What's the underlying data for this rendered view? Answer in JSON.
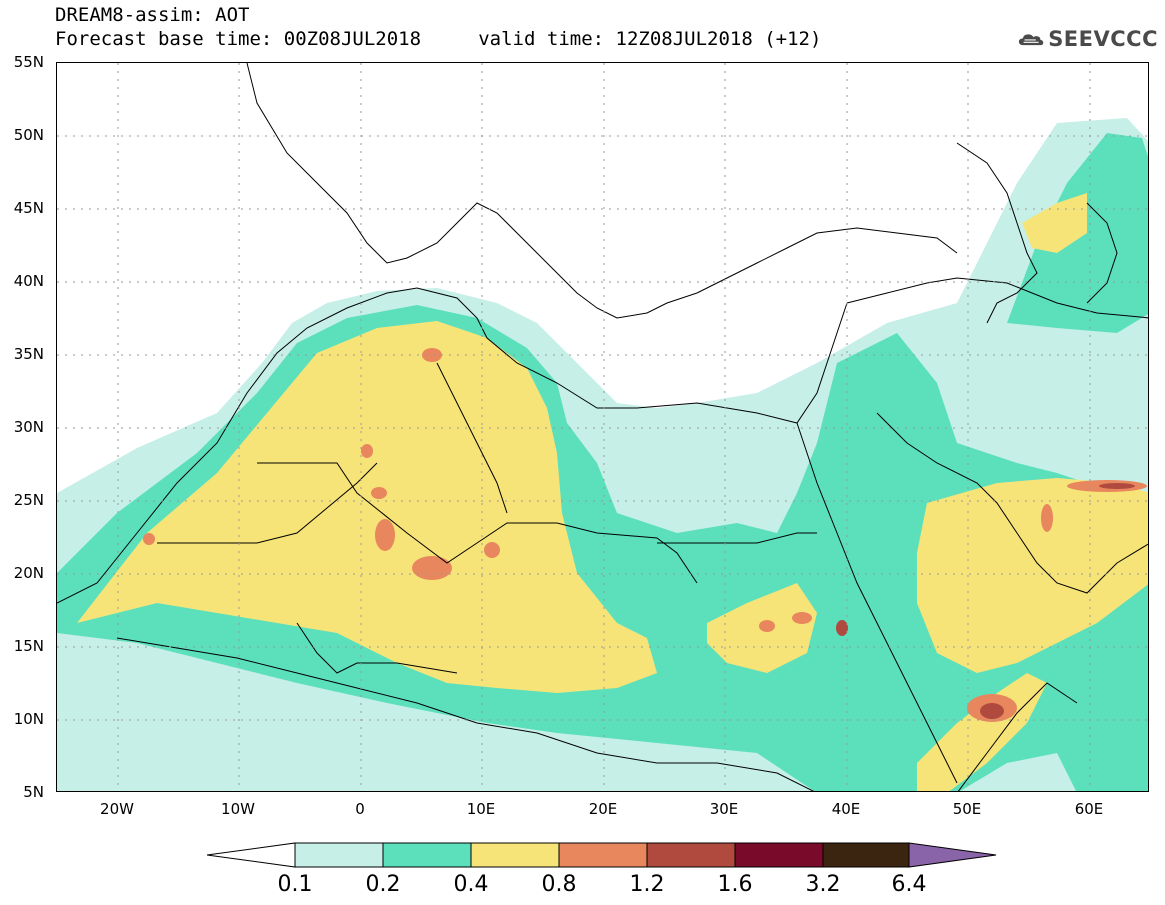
{
  "header": {
    "title_line1": "DREAM8-assim: AOT",
    "title_line2": "Forecast base time: 00Z08JUL2018     valid time: 12Z08JUL2018 (+12)",
    "logo_text": "SEEVCCC"
  },
  "map": {
    "lat_labels": [
      "55N",
      "50N",
      "45N",
      "40N",
      "35N",
      "30N",
      "25N",
      "20N",
      "15N",
      "10N",
      "5N"
    ],
    "lon_labels": [
      "20W",
      "10W",
      "0",
      "10E",
      "20E",
      "30E",
      "40E",
      "50E",
      "60E"
    ],
    "colors": {
      "c1": "#c6efe8",
      "c2": "#5ce0bc",
      "c3": "#f7e478",
      "c4": "#e8865e",
      "c5": "#b04a3e",
      "c6": "#7a0a2a",
      "c7": "#3b2410",
      "c8": "#8a64a8"
    }
  },
  "colorbar": {
    "labels": [
      "0.1",
      "0.2",
      "0.4",
      "0.8",
      "1.2",
      "1.6",
      "3.2",
      "6.4"
    ],
    "colors": [
      "#ffffff",
      "#c6efe8",
      "#5ce0bc",
      "#f7e478",
      "#e8865e",
      "#b04a3e",
      "#7a0a2a",
      "#3b2410",
      "#8a64a8"
    ]
  }
}
